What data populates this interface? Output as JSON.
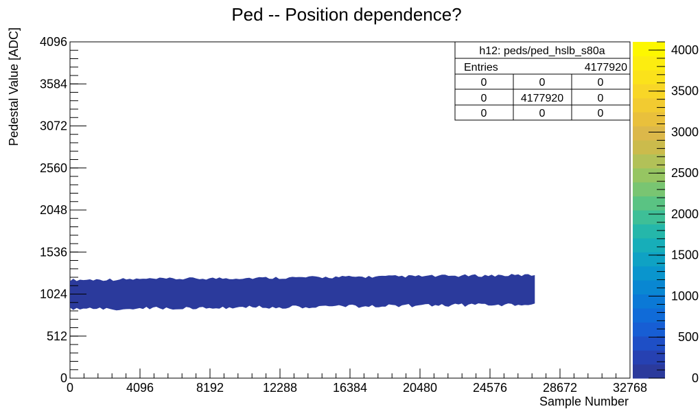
{
  "chart_data": {
    "type": "heatmap",
    "title": "Ped -- Position dependence?",
    "xlabel": "Sample Number",
    "ylabel": "Pedestal Value [ADC]",
    "xlim": [
      0,
      32768
    ],
    "ylim": [
      0,
      4096
    ],
    "x_ticks": [
      "0",
      "4096",
      "8192",
      "12288",
      "16384",
      "20480",
      "24576",
      "28672",
      "32768"
    ],
    "y_ticks": [
      "0",
      "512",
      "1024",
      "1536",
      "2048",
      "2560",
      "3072",
      "3584",
      "4096"
    ],
    "colorbar": {
      "range": [
        0,
        4100
      ],
      "ticks": [
        "0",
        "500",
        "1000",
        "1500",
        "2000",
        "2500",
        "3000",
        "3500",
        "4000"
      ],
      "colors": [
        "#2b3a9c",
        "#2641b2",
        "#1e4fc6",
        "#175ed4",
        "#106bd8",
        "#0b79d6",
        "#0987d2",
        "#0a95cd",
        "#0fa2c4",
        "#17aeb9",
        "#25b7aa",
        "#3ebf97",
        "#5ac383",
        "#79c572",
        "#96c562",
        "#b2c158",
        "#cbbb4c",
        "#dcb84a",
        "#e9c03c",
        "#f2cb31",
        "#f8d627",
        "#fbe21b",
        "#fced10",
        "#fdf700"
      ]
    },
    "band": {
      "x_start": 0,
      "x_end": 27200,
      "y_low_start": 860,
      "y_high_start": 1180,
      "y_low_end": 920,
      "y_high_end": 1240,
      "color": "#2b3a9c"
    },
    "grid": false
  },
  "stats_box": {
    "title": "h12: peds/ped_hslb_s80a",
    "entries_label": "Entries",
    "entries_value": "4177920",
    "grid": [
      [
        "0",
        "0",
        "0"
      ],
      [
        "0",
        "4177920",
        "0"
      ],
      [
        "0",
        "0",
        "0"
      ]
    ]
  }
}
